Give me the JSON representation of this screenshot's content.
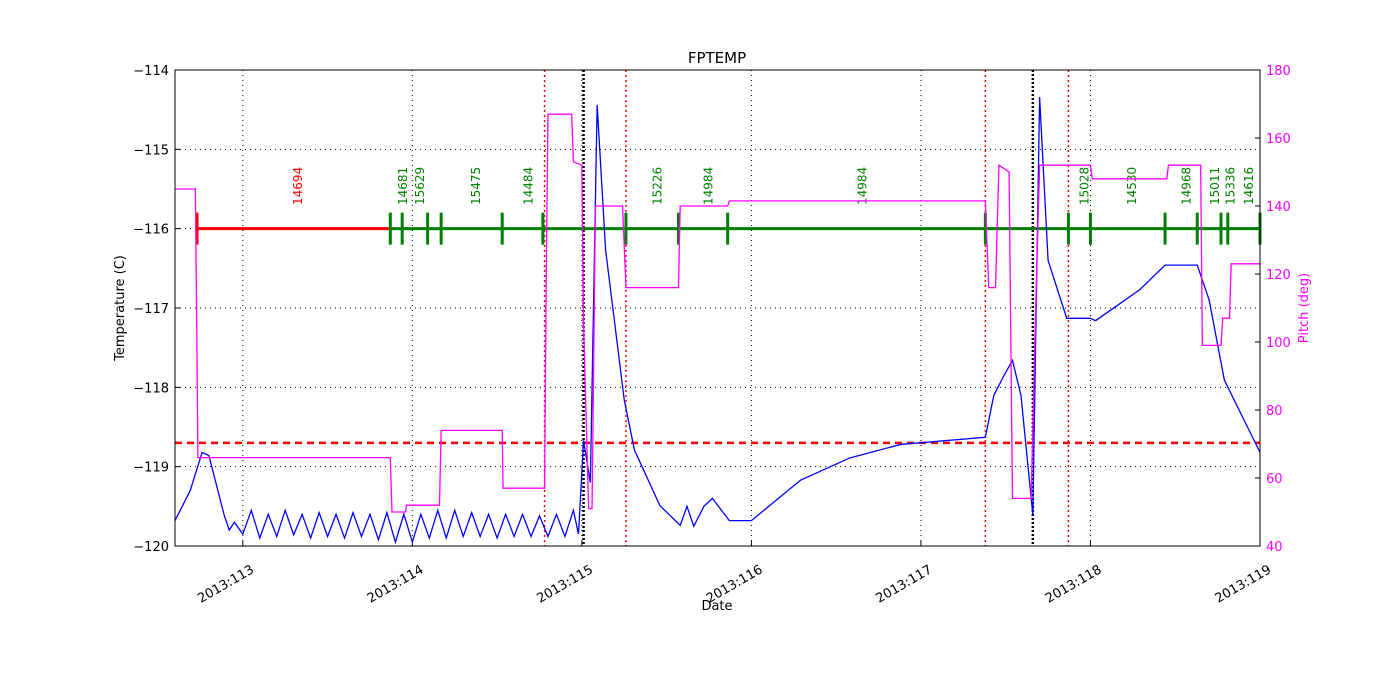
{
  "chart_data": {
    "type": "line",
    "title": "FPTEMP",
    "xlabel": "Date",
    "ylabel": "Temperature (C)",
    "y2label": "Pitch (deg)",
    "xlim": [
      112.6,
      119.0
    ],
    "ylim": [
      -120,
      -114
    ],
    "y2lim": [
      40,
      180
    ],
    "grid": true,
    "x_ticks": [
      113,
      114,
      115,
      116,
      117,
      118,
      119
    ],
    "x_tick_labels": [
      "2013:113",
      "2013:114",
      "2013:115",
      "2013:116",
      "2013:117",
      "2013:118",
      "2013:119"
    ],
    "y_ticks": [
      -114,
      -115,
      -116,
      -117,
      -118,
      -119,
      -120
    ],
    "y_tick_labels": [
      "−114",
      "−115",
      "−116",
      "−117",
      "−118",
      "−119",
      "−120"
    ],
    "y2_ticks": [
      40,
      60,
      80,
      100,
      120,
      140,
      160,
      180
    ],
    "y2_tick_labels": [
      "40",
      "60",
      "80",
      "100",
      "120",
      "140",
      "160",
      "180"
    ],
    "colors": {
      "temperature": "#0000ff",
      "pitch": "#ff00ff",
      "limit": "#ff0000",
      "obsid": "#008000",
      "first_obsid": "#ff0000",
      "axis2": "#ff00ff"
    },
    "limit_line": -118.7,
    "red_dotted_x": [
      114.78,
      115.26,
      117.38,
      117.87
    ],
    "black_dotted_x": [
      115.01,
      117.66
    ],
    "obsid_level": -116,
    "obsid_ticks": [
      112.73,
      113.87,
      113.94,
      114.09,
      114.17,
      114.53,
      114.77,
      115.26,
      115.57,
      115.86,
      117.38,
      117.87,
      118.0,
      118.44,
      118.63,
      118.77,
      118.81,
      119.0
    ],
    "obsid_labels": [
      {
        "label": "14694",
        "x": 113.32,
        "color": "red"
      },
      {
        "label": "14681",
        "x": 113.94,
        "color": "green"
      },
      {
        "label": "15629",
        "x": 114.04,
        "color": "green"
      },
      {
        "label": "15475",
        "x": 114.37,
        "color": "green"
      },
      {
        "label": "14484",
        "x": 114.68,
        "color": "green"
      },
      {
        "label": "15226",
        "x": 115.44,
        "color": "green"
      },
      {
        "label": "14984",
        "x": 115.74,
        "color": "green"
      },
      {
        "label": "14984",
        "x": 116.65,
        "color": "green"
      },
      {
        "label": "15028",
        "x": 117.96,
        "color": "green"
      },
      {
        "label": "14530",
        "x": 118.24,
        "color": "green"
      },
      {
        "label": "14968",
        "x": 118.56,
        "color": "green"
      },
      {
        "label": "15011",
        "x": 118.73,
        "color": "green"
      },
      {
        "label": "15336",
        "x": 118.82,
        "color": "green"
      },
      {
        "label": "14616",
        "x": 118.93,
        "color": "green"
      }
    ],
    "series": [
      {
        "axis": "left",
        "points": [
          [
            112.6,
            -119.68
          ],
          [
            112.69,
            -119.3
          ],
          [
            112.76,
            -118.82
          ],
          [
            112.8,
            -118.86
          ],
          [
            112.89,
            -119.61
          ],
          [
            112.92,
            -119.8
          ],
          [
            112.95,
            -119.7
          ],
          [
            113.0,
            -119.85
          ],
          [
            113.05,
            -119.55
          ],
          [
            113.1,
            -119.9
          ],
          [
            113.15,
            -119.6
          ],
          [
            113.2,
            -119.88
          ],
          [
            113.25,
            -119.55
          ],
          [
            113.3,
            -119.86
          ],
          [
            113.35,
            -119.6
          ],
          [
            113.4,
            -119.9
          ],
          [
            113.45,
            -119.58
          ],
          [
            113.5,
            -119.88
          ],
          [
            113.55,
            -119.6
          ],
          [
            113.6,
            -119.9
          ],
          [
            113.65,
            -119.58
          ],
          [
            113.7,
            -119.88
          ],
          [
            113.75,
            -119.6
          ],
          [
            113.8,
            -119.92
          ],
          [
            113.85,
            -119.58
          ],
          [
            113.9,
            -119.95
          ],
          [
            113.95,
            -119.6
          ],
          [
            114.0,
            -119.95
          ],
          [
            114.05,
            -119.6
          ],
          [
            114.1,
            -119.9
          ],
          [
            114.15,
            -119.55
          ],
          [
            114.2,
            -119.9
          ],
          [
            114.25,
            -119.55
          ],
          [
            114.3,
            -119.88
          ],
          [
            114.35,
            -119.58
          ],
          [
            114.4,
            -119.88
          ],
          [
            114.45,
            -119.6
          ],
          [
            114.5,
            -119.9
          ],
          [
            114.55,
            -119.6
          ],
          [
            114.6,
            -119.88
          ],
          [
            114.65,
            -119.6
          ],
          [
            114.7,
            -119.88
          ],
          [
            114.75,
            -119.62
          ],
          [
            114.8,
            -119.88
          ],
          [
            114.85,
            -119.6
          ],
          [
            114.9,
            -119.88
          ],
          [
            114.95,
            -119.55
          ],
          [
            114.98,
            -119.85
          ],
          [
            115.01,
            -118.67
          ],
          [
            115.05,
            -119.2
          ],
          [
            115.09,
            -114.44
          ],
          [
            115.14,
            -116.27
          ],
          [
            115.25,
            -118.16
          ],
          [
            115.31,
            -118.79
          ],
          [
            115.46,
            -119.49
          ],
          [
            115.58,
            -119.74
          ],
          [
            115.62,
            -119.5
          ],
          [
            115.66,
            -119.75
          ],
          [
            115.72,
            -119.5
          ],
          [
            115.77,
            -119.4
          ],
          [
            115.87,
            -119.68
          ],
          [
            116.0,
            -119.68
          ],
          [
            116.29,
            -119.17
          ],
          [
            116.58,
            -118.89
          ],
          [
            116.88,
            -118.72
          ],
          [
            117.38,
            -118.63
          ],
          [
            117.43,
            -118.1
          ],
          [
            117.49,
            -117.85
          ],
          [
            117.54,
            -117.66
          ],
          [
            117.59,
            -118.1
          ],
          [
            117.66,
            -119.61
          ],
          [
            117.7,
            -114.34
          ],
          [
            117.75,
            -116.4
          ],
          [
            117.86,
            -117.13
          ],
          [
            118.0,
            -117.13
          ],
          [
            118.03,
            -117.16
          ],
          [
            118.29,
            -116.77
          ],
          [
            118.44,
            -116.46
          ],
          [
            118.63,
            -116.46
          ],
          [
            118.7,
            -116.9
          ],
          [
            118.79,
            -117.91
          ],
          [
            119.0,
            -118.82
          ]
        ]
      },
      {
        "axis": "right",
        "points": [
          [
            112.6,
            145
          ],
          [
            112.72,
            145
          ],
          [
            112.73,
            95
          ],
          [
            112.735,
            66
          ],
          [
            113.87,
            66
          ],
          [
            113.88,
            50
          ],
          [
            113.96,
            50
          ],
          [
            113.965,
            52
          ],
          [
            114.16,
            52
          ],
          [
            114.17,
            74
          ],
          [
            114.53,
            74
          ],
          [
            114.535,
            57
          ],
          [
            114.78,
            57
          ],
          [
            114.79,
            120
          ],
          [
            114.8,
            167
          ],
          [
            114.94,
            167
          ],
          [
            114.95,
            153
          ],
          [
            115.0,
            152
          ],
          [
            115.01,
            105
          ],
          [
            115.04,
            51
          ],
          [
            115.06,
            51
          ],
          [
            115.08,
            140
          ],
          [
            115.24,
            140
          ],
          [
            115.26,
            116
          ],
          [
            115.57,
            116
          ],
          [
            115.58,
            140
          ],
          [
            115.86,
            140
          ],
          [
            115.87,
            141.5
          ],
          [
            117.38,
            141.5
          ],
          [
            117.4,
            116
          ],
          [
            117.44,
            116
          ],
          [
            117.46,
            152
          ],
          [
            117.52,
            150
          ],
          [
            117.54,
            54
          ],
          [
            117.65,
            54
          ],
          [
            117.68,
            116
          ],
          [
            117.7,
            152
          ],
          [
            118.0,
            152
          ],
          [
            118.01,
            148
          ],
          [
            118.45,
            148
          ],
          [
            118.46,
            152
          ],
          [
            118.65,
            152
          ],
          [
            118.66,
            99
          ],
          [
            118.77,
            99
          ],
          [
            118.78,
            107
          ],
          [
            118.82,
            107
          ],
          [
            118.83,
            123
          ],
          [
            119.0,
            123
          ]
        ]
      }
    ]
  }
}
